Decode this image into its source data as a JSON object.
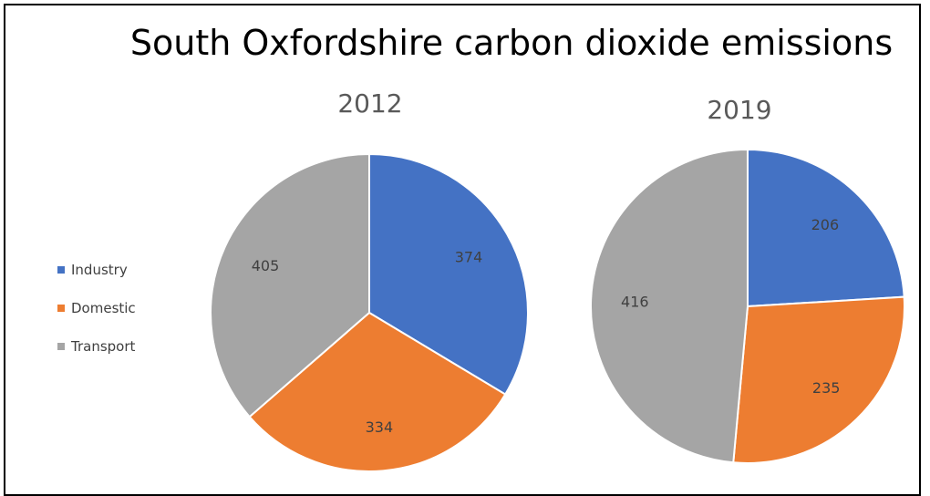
{
  "chart_data": {
    "type": "pie",
    "title": "South Oxfordshire carbon dioxide emissions",
    "categories": [
      "Industry",
      "Domestic",
      "Transport"
    ],
    "colors": {
      "Industry": "#4472c4",
      "Domestic": "#ed7d31",
      "Transport": "#a5a5a5"
    },
    "legend_position": "left",
    "pies": [
      {
        "subtitle": "2012",
        "values": [
          374,
          334,
          405
        ]
      },
      {
        "subtitle": "2019",
        "values": [
          206,
          235,
          416
        ]
      }
    ]
  }
}
